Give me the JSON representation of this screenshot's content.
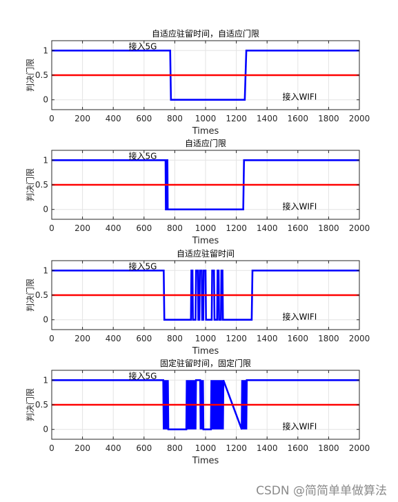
{
  "chart_data": [
    {
      "type": "line",
      "title": "自适应驻留时间，自适应门限",
      "xlabel": "Times",
      "ylabel": "判决门限",
      "xlim": [
        0,
        2000
      ],
      "ylim": [
        -0.2,
        1.2
      ],
      "xticks": [
        "0",
        "200",
        "400",
        "600",
        "800",
        "1000",
        "1200",
        "1400",
        "1600",
        "1800",
        "2000"
      ],
      "yticks": [
        "0",
        "0.5",
        "1"
      ],
      "grid": true,
      "annotations": [
        {
          "text": "接入5G",
          "x": 500,
          "y": 1.08
        },
        {
          "text": "接入WIFI",
          "x": 1500,
          "y": 0.06
        }
      ],
      "series": [
        {
          "color": "#0000ff",
          "x": [
            0,
            770,
            775,
            1255,
            1265,
            2000
          ],
          "y": [
            1,
            1,
            0,
            0,
            1,
            1
          ]
        },
        {
          "color": "#ff0000",
          "x": [
            0,
            2000
          ],
          "y": [
            0.5,
            0.5
          ]
        }
      ]
    },
    {
      "type": "line",
      "title": "自适应门限",
      "xlabel": "Times",
      "ylabel": "判决门限",
      "xlim": [
        0,
        2000
      ],
      "ylim": [
        -0.2,
        1.2
      ],
      "xticks": [
        "0",
        "200",
        "400",
        "600",
        "800",
        "1000",
        "1200",
        "1400",
        "1600",
        "1800",
        "2000"
      ],
      "yticks": [
        "0",
        "0.5",
        "1"
      ],
      "grid": true,
      "annotations": [
        {
          "text": "接入5G",
          "x": 500,
          "y": 1.08
        },
        {
          "text": "接入WIFI",
          "x": 1500,
          "y": 0.06
        }
      ],
      "series": [
        {
          "color": "#0000ff",
          "x": [
            0,
            740,
            742,
            746,
            748,
            752,
            754,
            758,
            762,
            1245,
            1250,
            2000
          ],
          "y": [
            1,
            1,
            0,
            0,
            1,
            1,
            0,
            0,
            0,
            0,
            1,
            1
          ]
        },
        {
          "color": "#ff0000",
          "x": [
            0,
            2000
          ],
          "y": [
            0.5,
            0.5
          ]
        }
      ]
    },
    {
      "type": "line",
      "title": "自适应驻留时间",
      "xlabel": "Times",
      "ylabel": "判决门限",
      "xlim": [
        0,
        2000
      ],
      "ylim": [
        -0.2,
        1.2
      ],
      "xticks": [
        "0",
        "200",
        "400",
        "600",
        "800",
        "1000",
        "1200",
        "1400",
        "1600",
        "1800",
        "2000"
      ],
      "yticks": [
        "0",
        "0.5",
        "1"
      ],
      "grid": true,
      "annotations": [
        {
          "text": "接入5G",
          "x": 500,
          "y": 1.08
        },
        {
          "text": "接入WIFI",
          "x": 1500,
          "y": 0.06
        }
      ],
      "series": [
        {
          "color": "#0000ff",
          "x": [
            0,
            728,
            732,
            905,
            908,
            915,
            918,
            935,
            938,
            950,
            953,
            960,
            963,
            975,
            978,
            985,
            988,
            1000,
            1003,
            1040,
            1043,
            1055,
            1058,
            1075,
            1078,
            1085,
            1088,
            1100,
            1103,
            1110,
            1113,
            1300,
            1305,
            2000
          ],
          "y": [
            1,
            1,
            0,
            0,
            1,
            1,
            0,
            0,
            1,
            1,
            0,
            0,
            1,
            1,
            0,
            0,
            1,
            1,
            0,
            0,
            1,
            1,
            0,
            0,
            1,
            1,
            0,
            0,
            1,
            1,
            0,
            0,
            1,
            1
          ]
        },
        {
          "color": "#ff0000",
          "x": [
            0,
            2000
          ],
          "y": [
            0.5,
            0.5
          ]
        }
      ]
    },
    {
      "type": "line",
      "title": "固定驻留时间，固定门限",
      "xlabel": "Times",
      "ylabel": "判决门限",
      "xlim": [
        0,
        2000
      ],
      "ylim": [
        -0.2,
        1.2
      ],
      "xticks": [
        "0",
        "200",
        "400",
        "600",
        "800",
        "1000",
        "1200",
        "1400",
        "1600",
        "1800",
        "2000"
      ],
      "yticks": [
        "0",
        "0.5",
        "1"
      ],
      "grid": true,
      "annotations": [
        {
          "text": "接入5G",
          "x": 500,
          "y": 1.08
        },
        {
          "text": "接入WIFI",
          "x": 1500,
          "y": 0.06
        }
      ],
      "series": [
        {
          "color": "#0000ff",
          "x": [
            0,
            725,
            728,
            731,
            734,
            737,
            740,
            743,
            746,
            749,
            752,
            755,
            758,
            875,
            878,
            881,
            884,
            887,
            890,
            893,
            896,
            899,
            902,
            905,
            908,
            911,
            914,
            917,
            920,
            923,
            926,
            929,
            932,
            935,
            938,
            965,
            968,
            971,
            974,
            977,
            980,
            983,
            986,
            1035,
            1038,
            1041,
            1044,
            1047,
            1050,
            1053,
            1056,
            1059,
            1062,
            1065,
            1068,
            1071,
            1074,
            1077,
            1080,
            1083,
            1086,
            1089,
            1092,
            1095,
            1098,
            1101,
            1104,
            1107,
            1110,
            1113,
            1116,
            1235,
            1238,
            1241,
            1244,
            1247,
            1250,
            1253,
            1256,
            1259,
            1262,
            1265,
            1268,
            1271,
            2000
          ],
          "y": [
            1,
            1,
            0,
            1,
            0,
            1,
            0,
            1,
            0,
            1,
            0,
            1,
            0,
            0,
            1,
            0,
            1,
            0,
            1,
            0,
            1,
            0,
            1,
            0,
            1,
            0,
            1,
            0,
            1,
            0,
            1,
            0,
            1,
            0,
            1,
            1,
            0,
            1,
            0,
            1,
            0,
            1,
            0,
            0,
            1,
            0,
            1,
            0,
            1,
            0,
            1,
            0,
            1,
            0,
            1,
            0,
            1,
            0,
            1,
            0,
            1,
            0,
            1,
            0,
            1,
            0,
            1,
            0,
            1,
            0,
            1,
            0,
            1,
            0,
            1,
            0,
            1,
            0,
            1,
            0,
            1,
            0,
            1,
            1,
            1
          ]
        },
        {
          "color": "#ff0000",
          "x": [
            0,
            2000
          ],
          "y": [
            0.5,
            0.5
          ]
        }
      ]
    }
  ],
  "watermark": "CSDN @简简单单做算法"
}
